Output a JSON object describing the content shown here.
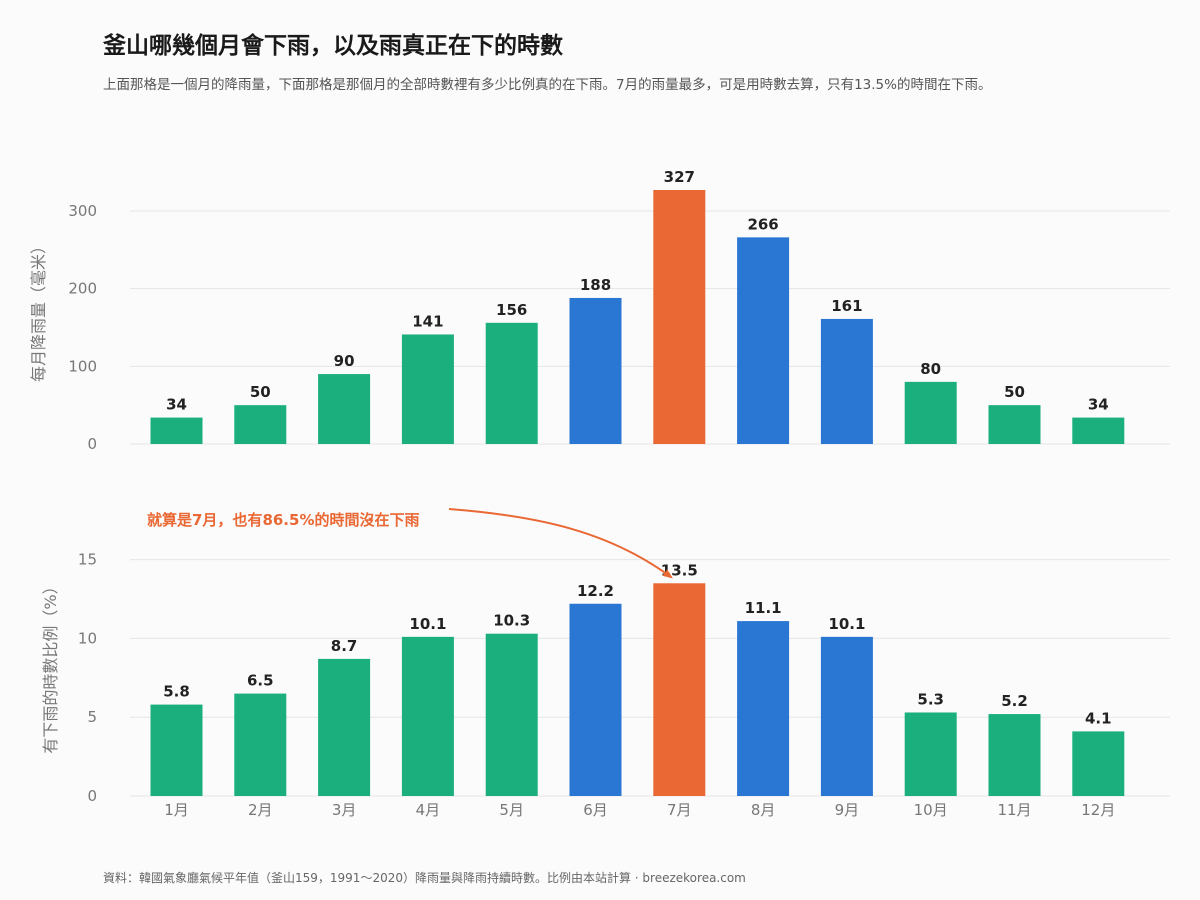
{
  "title": "釜山哪幾個月會下雨，以及雨真正在下的時數",
  "subtitle": "上面那格是一個月的降雨量，下面那格是那個月的全部時數裡有多少比例真的在下雨。7月的雨量最多，可是用時數去算，只有13.5%的時間在下雨。",
  "source": "資料：韓國氣象廳氣候平年值（釜山159，1991～2020）降雨量與降雨持續時數。比例由本站計算 · breezekorea.com",
  "colors": {
    "green": "#1aaf7c",
    "blue": "#2976d3",
    "orange": "#e96834"
  },
  "chart_data": [
    {
      "type": "bar",
      "categories": [
        "1月",
        "2月",
        "3月",
        "4月",
        "5月",
        "6月",
        "7月",
        "8月",
        "9月",
        "10月",
        "11月",
        "12月"
      ],
      "values": [
        34,
        50,
        90,
        141,
        156,
        188,
        327,
        266,
        161,
        80,
        50,
        34
      ],
      "value_labels": [
        "34",
        "50",
        "90",
        "141",
        "156",
        "188",
        "327",
        "266",
        "161",
        "80",
        "50",
        "34"
      ],
      "bar_colors": [
        "green",
        "green",
        "green",
        "green",
        "green",
        "blue",
        "orange",
        "blue",
        "blue",
        "green",
        "green",
        "green"
      ],
      "ylabel": "每月降雨量（毫米）",
      "ylim": [
        0,
        345
      ],
      "yticks": [
        0,
        100,
        200,
        300
      ],
      "grid": true
    },
    {
      "type": "bar",
      "categories": [
        "1月",
        "2月",
        "3月",
        "4月",
        "5月",
        "6月",
        "7月",
        "8月",
        "9月",
        "10月",
        "11月",
        "12月"
      ],
      "values": [
        5.8,
        6.5,
        8.7,
        10.1,
        10.3,
        12.2,
        13.5,
        11.1,
        10.1,
        5.3,
        5.2,
        4.1
      ],
      "value_labels": [
        "5.8",
        "6.5",
        "8.7",
        "10.1",
        "10.3",
        "12.2",
        "13.5",
        "11.1",
        "10.1",
        "5.3",
        "5.2",
        "4.1"
      ],
      "bar_colors": [
        "green",
        "green",
        "green",
        "green",
        "green",
        "blue",
        "orange",
        "blue",
        "blue",
        "green",
        "green",
        "green"
      ],
      "ylabel": "有下雨的時數比例（%）",
      "ylim": [
        0,
        16.5
      ],
      "yticks": [
        0,
        5,
        10,
        15
      ],
      "grid": true,
      "annotation": {
        "text": "就算是7月，也有86.5%的時間沒在下雨",
        "target_category": "7月",
        "color": "#e96834"
      }
    }
  ]
}
